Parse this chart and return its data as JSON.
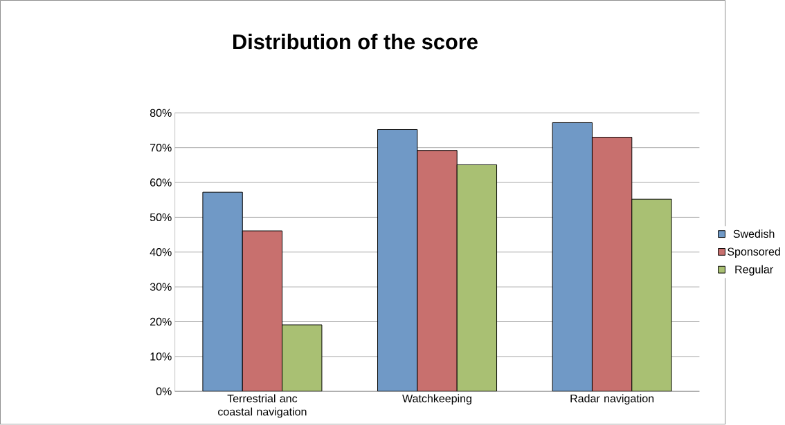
{
  "chart_data": {
    "type": "bar",
    "title": "Distribution of the score",
    "categories": [
      "Terrestrial anc coastal navigation",
      "Watchkeeping",
      "Radar navigation"
    ],
    "series": [
      {
        "name": "Swedish",
        "color": "#7099c6",
        "values": [
          57.2,
          75.2,
          77.2
        ]
      },
      {
        "name": "Sponsored",
        "color": "#c8706e",
        "values": [
          46.1,
          69.2,
          73.0
        ]
      },
      {
        "name": "Regular",
        "color": "#a9c073",
        "values": [
          19.1,
          65.1,
          55.2
        ]
      }
    ],
    "ylim": [
      0,
      80
    ],
    "yticks": [
      {
        "value": 0,
        "label": "0%"
      },
      {
        "value": 10,
        "label": "10%"
      },
      {
        "value": 20,
        "label": "20%"
      },
      {
        "value": 30,
        "label": "30%"
      },
      {
        "value": 40,
        "label": "40%"
      },
      {
        "value": 50,
        "label": "50%"
      },
      {
        "value": 60,
        "label": "60%"
      },
      {
        "value": 70,
        "label": "70%"
      },
      {
        "value": 80,
        "label": "80%"
      }
    ],
    "grid": "y",
    "legend": "right"
  }
}
